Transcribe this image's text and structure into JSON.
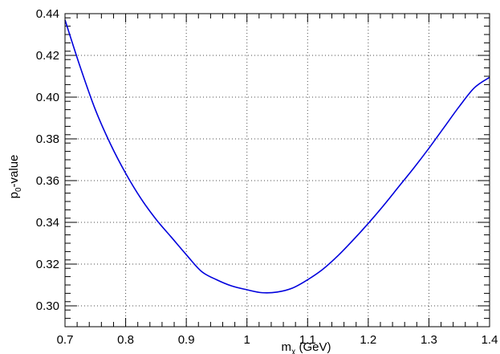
{
  "chart_data": {
    "type": "line",
    "title": "",
    "xlabel": {
      "main": "m",
      "sub": "χ",
      "rest": " (GeV)"
    },
    "ylabel": {
      "main": "p",
      "sub": "0",
      "rest": "-value"
    },
    "xlim": [
      0.7,
      1.4
    ],
    "ylim": [
      0.29,
      0.44
    ],
    "x_ticks": [
      0.7,
      0.8,
      0.9,
      1.0,
      1.1,
      1.2,
      1.3,
      1.4
    ],
    "x_tick_labels": [
      "0.7",
      "0.8",
      "0.9",
      "1",
      "1.1",
      "1.2",
      "1.3",
      "1.4"
    ],
    "y_ticks": [
      0.3,
      0.32,
      0.34,
      0.36,
      0.38,
      0.4,
      0.42,
      0.44
    ],
    "y_tick_labels": [
      "0.30",
      "0.32",
      "0.34",
      "0.36",
      "0.38",
      "0.40",
      "0.42",
      "0.44"
    ],
    "grid": true,
    "series": [
      {
        "color": "#0000dd",
        "x": [
          0.7,
          0.725,
          0.75,
          0.775,
          0.8,
          0.825,
          0.85,
          0.875,
          0.9,
          0.925,
          0.95,
          0.975,
          1.0,
          1.025,
          1.05,
          1.075,
          1.1,
          1.125,
          1.15,
          1.175,
          1.2,
          1.225,
          1.25,
          1.275,
          1.3,
          1.325,
          1.35,
          1.375,
          1.4
        ],
        "y": [
          0.437,
          0.4145,
          0.394,
          0.3775,
          0.3635,
          0.3515,
          0.3415,
          0.333,
          0.3245,
          0.3165,
          0.3125,
          0.3095,
          0.3077,
          0.3063,
          0.3066,
          0.3085,
          0.3125,
          0.3175,
          0.324,
          0.3315,
          0.3395,
          0.348,
          0.357,
          0.366,
          0.3755,
          0.3855,
          0.3955,
          0.4045,
          0.4095
        ]
      }
    ]
  }
}
